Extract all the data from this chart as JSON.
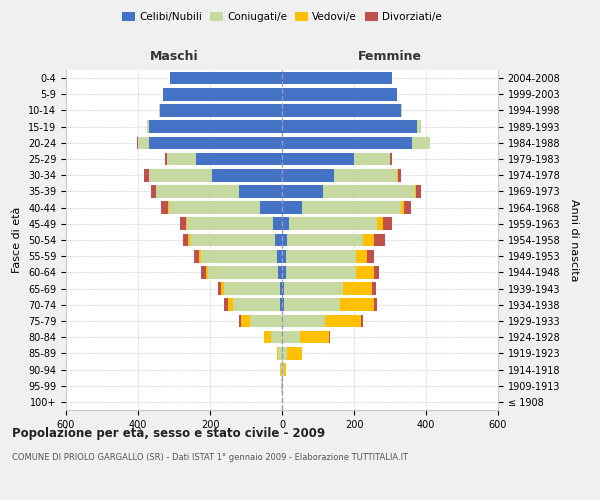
{
  "age_groups": [
    "100+",
    "95-99",
    "90-94",
    "85-89",
    "80-84",
    "75-79",
    "70-74",
    "65-69",
    "60-64",
    "55-59",
    "50-54",
    "45-49",
    "40-44",
    "35-39",
    "30-34",
    "25-29",
    "20-24",
    "15-19",
    "10-14",
    "5-9",
    "0-4"
  ],
  "birth_years": [
    "≤ 1908",
    "1909-1913",
    "1914-1918",
    "1919-1923",
    "1924-1928",
    "1929-1933",
    "1934-1938",
    "1939-1943",
    "1944-1948",
    "1949-1953",
    "1954-1958",
    "1959-1963",
    "1964-1968",
    "1969-1973",
    "1974-1978",
    "1979-1983",
    "1984-1988",
    "1989-1993",
    "1994-1998",
    "1999-2003",
    "2004-2008"
  ],
  "maschi": {
    "celibi": [
      0,
      0,
      0,
      0,
      0,
      0,
      5,
      5,
      10,
      15,
      20,
      25,
      60,
      120,
      195,
      240,
      370,
      370,
      340,
      330,
      310
    ],
    "coniugati": [
      1,
      2,
      4,
      10,
      30,
      90,
      130,
      155,
      195,
      210,
      235,
      240,
      255,
      230,
      175,
      80,
      30,
      5,
      2,
      0,
      0
    ],
    "vedovi": [
      0,
      0,
      1,
      5,
      20,
      25,
      15,
      10,
      5,
      5,
      5,
      3,
      2,
      0,
      0,
      0,
      0,
      0,
      0,
      0,
      0
    ],
    "divorziati": [
      0,
      0,
      0,
      0,
      0,
      5,
      10,
      8,
      15,
      15,
      15,
      15,
      20,
      15,
      12,
      5,
      2,
      0,
      0,
      0,
      0
    ]
  },
  "femmine": {
    "nubili": [
      0,
      0,
      0,
      0,
      0,
      0,
      5,
      5,
      10,
      10,
      15,
      20,
      55,
      115,
      145,
      200,
      360,
      375,
      330,
      320,
      305
    ],
    "coniugate": [
      1,
      2,
      5,
      15,
      50,
      120,
      155,
      165,
      195,
      195,
      210,
      245,
      275,
      255,
      175,
      100,
      50,
      10,
      2,
      0,
      0
    ],
    "vedove": [
      0,
      1,
      5,
      40,
      80,
      100,
      95,
      80,
      50,
      30,
      30,
      15,
      8,
      2,
      2,
      0,
      0,
      0,
      0,
      0,
      0
    ],
    "divorziate": [
      0,
      0,
      0,
      0,
      2,
      5,
      10,
      10,
      15,
      20,
      30,
      25,
      20,
      15,
      8,
      5,
      2,
      0,
      0,
      0,
      0
    ]
  },
  "colors": {
    "celibi_nubili": "#4472c4",
    "coniugati": "#c5d9a0",
    "vedovi": "#ffc000",
    "divorziati": "#c0504d"
  },
  "xlim": 600,
  "title": "Popolazione per età, sesso e stato civile - 2009",
  "subtitle": "COMUNE DI PRIOLO GARGALLO (SR) - Dati ISTAT 1° gennaio 2009 - Elaborazione TUTTITALIA.IT",
  "xlabel_left": "Maschi",
  "xlabel_right": "Femmine",
  "ylabel_left": "Fasce di età",
  "ylabel_right": "Anni di nascita",
  "bg_color": "#f0f0f0",
  "plot_bg_color": "#ffffff",
  "grid_color": "#cccccc"
}
